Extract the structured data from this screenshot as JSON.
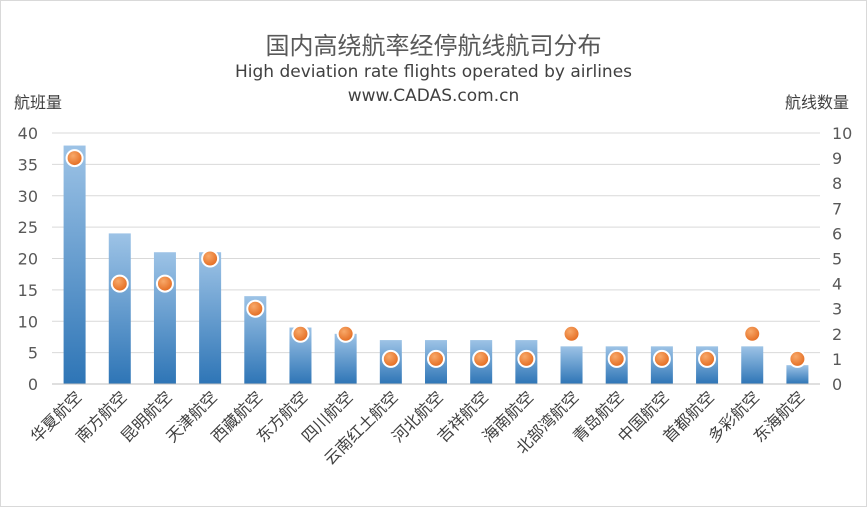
{
  "chart_data": {
    "type": "bar",
    "title": "国内高绕航率经停航线航司分布",
    "subtitle": "High  deviation rate flights  operated by airlines",
    "source": "www.CADAS.com.cn",
    "ylabel_left": "航班量",
    "ylabel_right": "航线数量",
    "categories": [
      "华夏航空",
      "南方航空",
      "昆明航空",
      "天津航空",
      "西藏航空",
      "东方航空",
      "四川航空",
      "云南红土航空",
      "河北航空",
      "吉祥航空",
      "海南航空",
      "北部湾航空",
      "青岛航空",
      "中国航空",
      "首都航空",
      "多彩航空",
      "东海航空"
    ],
    "series": [
      {
        "type": "bar",
        "axis": "left",
        "values": [
          38,
          24,
          21,
          21,
          14,
          9,
          8,
          7,
          7,
          7,
          7,
          6,
          6,
          6,
          6,
          6,
          3
        ],
        "color": "#5b9bd5"
      },
      {
        "type": "scatter",
        "axis": "right",
        "values": [
          9,
          4,
          4,
          5,
          3,
          2,
          2,
          1,
          1,
          1,
          1,
          2,
          1,
          1,
          1,
          2,
          1
        ],
        "color": "#ed7d31"
      }
    ],
    "ylim_left": [
      0,
      40
    ],
    "yticks_left": [
      "0",
      "5",
      "10",
      "15",
      "20",
      "25",
      "30",
      "35",
      "40"
    ],
    "ylim_right": [
      0,
      10
    ],
    "yticks_right": [
      "0",
      "1",
      "2",
      "3",
      "4",
      "5",
      "6",
      "7",
      "8",
      "9",
      "10"
    ],
    "grid": true,
    "legend": "none"
  }
}
